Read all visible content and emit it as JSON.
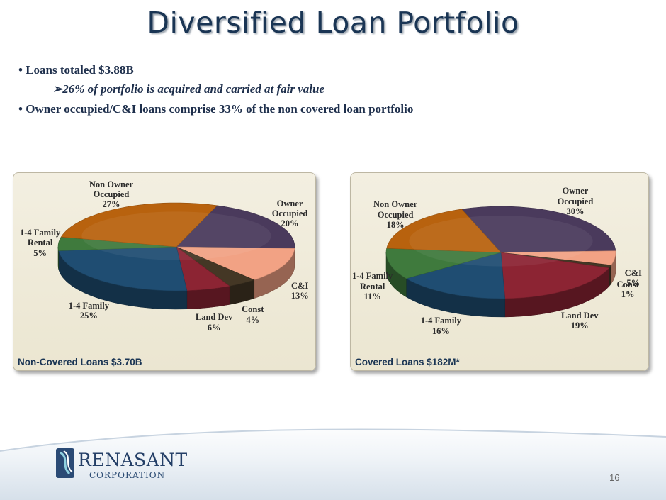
{
  "title": "Diversified Loan Portfolio",
  "bullets": {
    "b1": "• Loans totaled $3.88B",
    "sub1": "➢26% of portfolio is acquired and carried at fair value",
    "b2": "• Owner occupied/C&I loans comprise 33% of the non covered loan portfolio"
  },
  "chart_data": [
    {
      "type": "pie",
      "title": "Non-Covered Loans $3.70B",
      "slices": [
        {
          "name": "Owner Occupied",
          "value": 20,
          "label": "20%",
          "color": "#4a3a5c"
        },
        {
          "name": "C&I",
          "value": 13,
          "label": "13%",
          "color": "#f2a284"
        },
        {
          "name": "Const",
          "value": 4,
          "label": "4%",
          "color": "#443725"
        },
        {
          "name": "Land Dev",
          "value": 6,
          "label": "6%",
          "color": "#8c2433"
        },
        {
          "name": "1-4 Family",
          "value": 25,
          "label": "25%",
          "color": "#1f4d72"
        },
        {
          "name": "1-4 Family Rental",
          "value": 5,
          "label": "5%",
          "color": "#3f7a3d"
        },
        {
          "name": "Non Owner Occupied",
          "value": 27,
          "label": "27%",
          "color": "#b8620e"
        }
      ]
    },
    {
      "type": "pie",
      "title": "Covered Loans $182M*",
      "slices": [
        {
          "name": "Owner Occupied",
          "value": 30,
          "label": "30%",
          "color": "#4a3a5c"
        },
        {
          "name": "C&I",
          "value": 5,
          "label": "5%",
          "color": "#f2a284"
        },
        {
          "name": "Const",
          "value": 1,
          "label": "1%",
          "color": "#443725"
        },
        {
          "name": "Land Dev",
          "value": 19,
          "label": "19%",
          "color": "#8c2433"
        },
        {
          "name": "1-4 Family",
          "value": 16,
          "label": "16%",
          "color": "#1f4d72"
        },
        {
          "name": "1-4 Family Rental",
          "value": 11,
          "label": "11%",
          "color": "#3f7a3d"
        },
        {
          "name": "Non Owner Occupied",
          "value": 18,
          "label": "18%",
          "color": "#b8620e"
        }
      ]
    }
  ],
  "logo": {
    "name": "RENASANT",
    "sub": "CORPORATION"
  },
  "page_number": "16"
}
